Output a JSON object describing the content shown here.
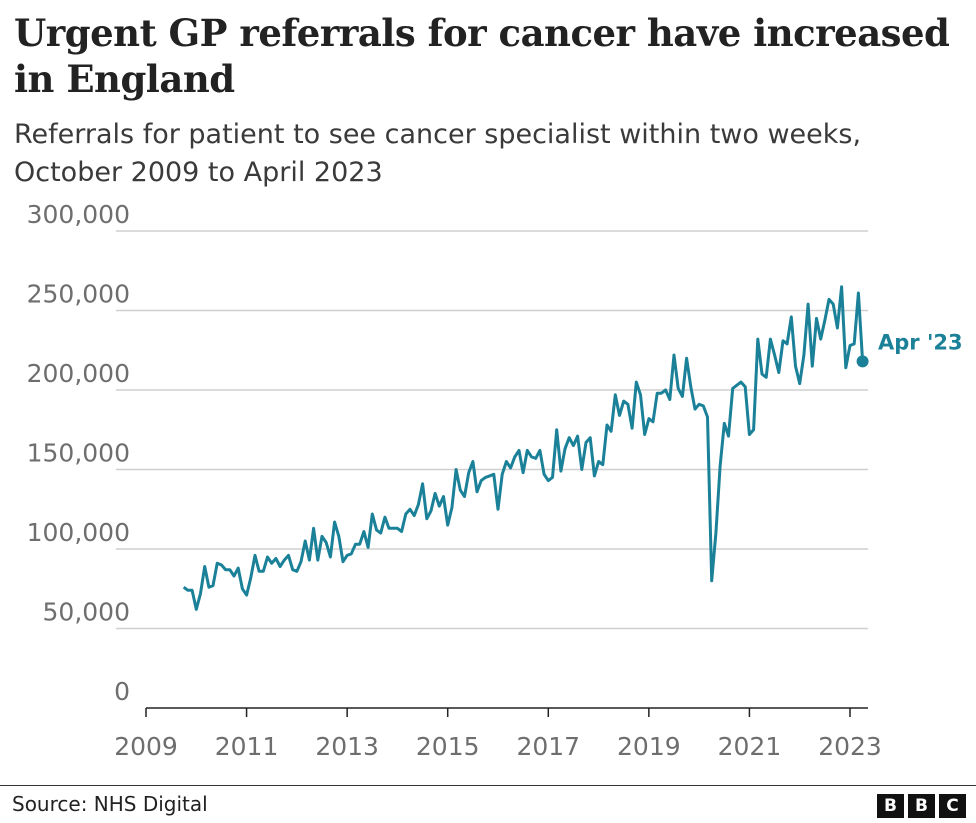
{
  "chart_data": {
    "type": "line",
    "title": "Urgent GP referrals for cancer have increased in England",
    "subtitle": "Referrals for patient to see cancer specialist within two weeks, October 2009 to April 2023",
    "xlabel": "",
    "ylabel": "",
    "x_start": "2009-10",
    "x_end": "2023-04",
    "x_frequency": "monthly",
    "xlim": [
      2009,
      2023
    ],
    "ylim": [
      0,
      300000
    ],
    "x_ticks": [
      "2009",
      "2011",
      "2013",
      "2015",
      "2017",
      "2019",
      "2021",
      "2023"
    ],
    "y_ticks": [
      "0",
      "50,000",
      "100,000",
      "150,000",
      "200,000",
      "250,000",
      "300,000"
    ],
    "grid": "horizontal",
    "line_color": "#1b8199",
    "end_label": "Apr '23",
    "values": [
      76000,
      74000,
      74000,
      62000,
      72000,
      89000,
      76000,
      77000,
      91000,
      90000,
      87000,
      87000,
      83000,
      88000,
      75000,
      71000,
      82000,
      96000,
      86000,
      86000,
      95000,
      91000,
      94000,
      89000,
      93000,
      96000,
      87000,
      86000,
      92000,
      105000,
      93000,
      113000,
      93000,
      108000,
      104000,
      95000,
      117000,
      108000,
      92000,
      96000,
      97000,
      103000,
      103000,
      111000,
      101000,
      122000,
      112000,
      110000,
      120000,
      113000,
      113000,
      113000,
      111000,
      122000,
      125000,
      121000,
      128000,
      141000,
      119000,
      124000,
      135000,
      127000,
      133000,
      115000,
      126000,
      150000,
      137000,
      133000,
      148000,
      155000,
      136000,
      143000,
      145000,
      146000,
      147000,
      125000,
      147000,
      155000,
      151000,
      158000,
      162000,
      148000,
      162000,
      158000,
      157000,
      162000,
      147000,
      143000,
      145000,
      175000,
      149000,
      163000,
      170000,
      165000,
      171000,
      150000,
      167000,
      170000,
      146000,
      155000,
      153000,
      178000,
      174000,
      197000,
      184000,
      193000,
      191000,
      176000,
      205000,
      197000,
      172000,
      182000,
      180000,
      198000,
      198000,
      200000,
      194000,
      222000,
      201000,
      196000,
      220000,
      202000,
      188000,
      191000,
      190000,
      183000,
      80000,
      110000,
      152000,
      179000,
      171000,
      201000,
      203000,
      205000,
      202000,
      172000,
      175000,
      232000,
      210000,
      208000,
      232000,
      222000,
      211000,
      231000,
      229000,
      246000,
      215000,
      204000,
      222000,
      254000,
      215000,
      245000,
      232000,
      244000,
      257000,
      254000,
      239000,
      265000,
      214000,
      228000,
      229000,
      261000,
      218000
    ]
  },
  "footer": {
    "source": "Source: NHS Digital",
    "logo": [
      "B",
      "B",
      "C"
    ]
  }
}
